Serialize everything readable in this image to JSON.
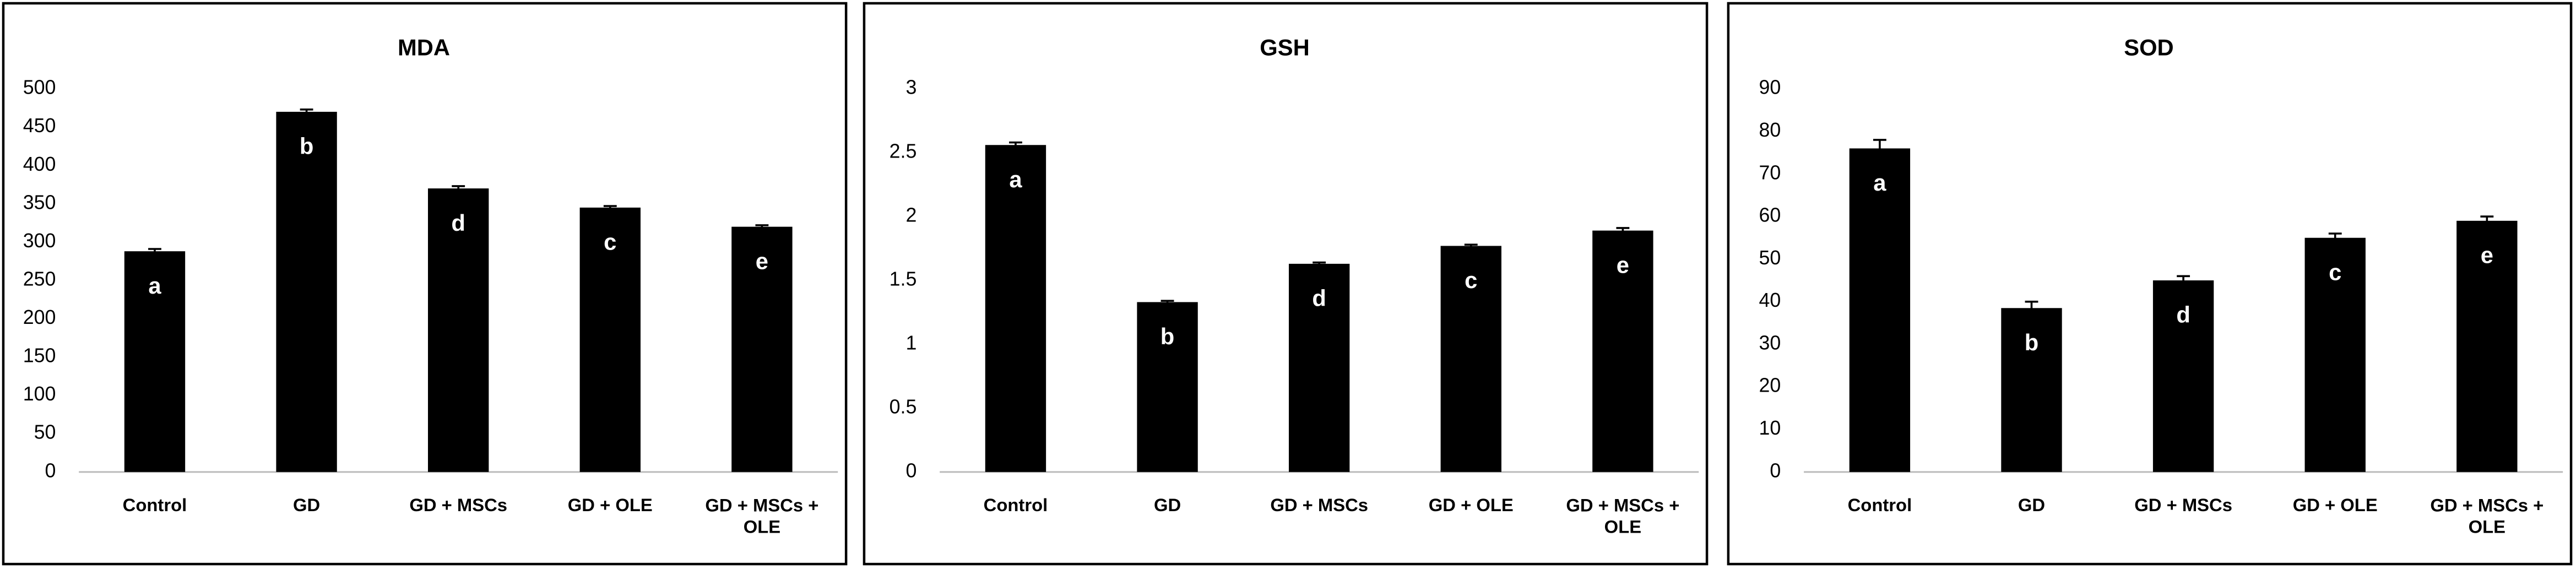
{
  "chart_data": [
    {
      "type": "bar",
      "title": "MDA",
      "categories": [
        "Control",
        "GD",
        "GD + MSCs",
        "GD + OLE",
        "GD + MSCs + OLE"
      ],
      "values": [
        288,
        470,
        370,
        345,
        320
      ],
      "errors": [
        3,
        3,
        3,
        2,
        2
      ],
      "annotations": [
        "a",
        "b",
        "d",
        "c",
        "e"
      ],
      "color": "#000000",
      "ylim": [
        0,
        500
      ],
      "yticks": [
        0,
        50,
        100,
        150,
        200,
        250,
        300,
        350,
        400,
        450,
        500
      ],
      "grid": false
    },
    {
      "type": "bar",
      "title": "GSH",
      "categories": [
        "Control",
        "GD",
        "GD + MSCs",
        "GD + OLE",
        "GD + MSCs + OLE"
      ],
      "values": [
        2.56,
        1.33,
        1.63,
        1.77,
        1.89
      ],
      "errors": [
        0.02,
        0.01,
        0.01,
        0.01,
        0.02
      ],
      "annotations": [
        "a",
        "b",
        "d",
        "c",
        "e"
      ],
      "color": "#000000",
      "ylim": [
        0,
        3
      ],
      "yticks": [
        0,
        0.5,
        1,
        1.5,
        2,
        2.5,
        3
      ],
      "grid": false
    },
    {
      "type": "bar",
      "title": "SOD",
      "categories": [
        "Control",
        "GD",
        "GD + MSCs",
        "GD + OLE",
        "GD + MSCs + OLE"
      ],
      "values": [
        76,
        38.5,
        45,
        55,
        59
      ],
      "errors": [
        2,
        1.5,
        1,
        1,
        1
      ],
      "annotations": [
        "a",
        "b",
        "d",
        "c",
        "e"
      ],
      "color": "#000000",
      "ylim": [
        0,
        90
      ],
      "yticks": [
        0,
        10,
        20,
        30,
        40,
        50,
        60,
        70,
        80,
        90
      ],
      "grid": false
    }
  ]
}
